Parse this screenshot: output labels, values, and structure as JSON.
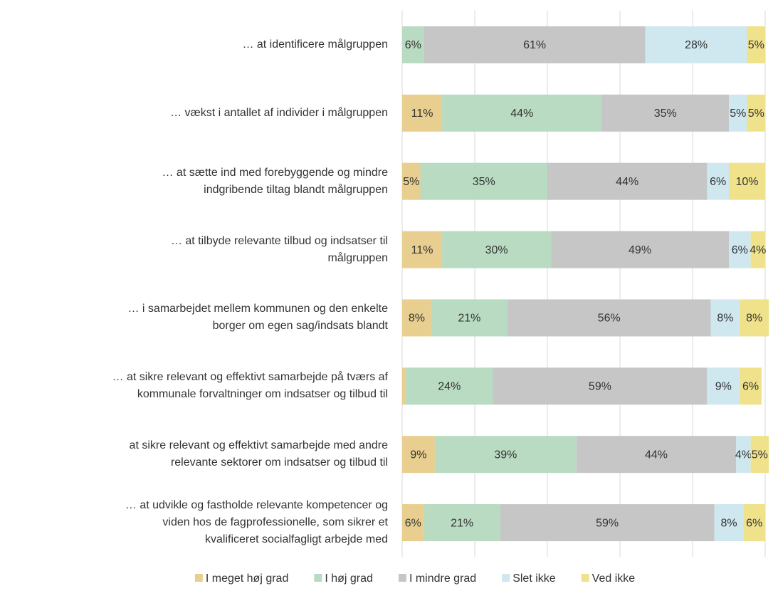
{
  "chart_data": {
    "type": "stacked_bar_horizontal",
    "categories": [
      "… at identificere målgruppen",
      "… vækst i antallet af individer i målgruppen",
      "… at sætte ind med forebyggende og mindre\nindgribende tiltag blandt målgruppen",
      "… at tilbyde relevante tilbud og indsatser til\nmålgruppen",
      "… i samarbejdet mellem kommunen og den enkelte\nborger om egen sag/indsats blandt",
      "… at sikre relevant og effektivt samarbejde på tværs af\nkommunale forvaltninger om indsatser og tilbud til",
      "at sikre relevant og effektivt samarbejde med andre\nrelevante sektorer om indsatser og tilbud til",
      "… at udvikle og fastholde relevante kompetencer og\nviden hos de fagprofessionelle, som sikrer et\nkvalificeret socialfagligt arbejde med"
    ],
    "series": [
      {
        "name": "I meget høj grad",
        "color": "#e8cf8f",
        "values": [
          0,
          11,
          5,
          11,
          8,
          1,
          9,
          6
        ],
        "value_labels": [
          null,
          "11%",
          "5%",
          "11%",
          "8%",
          null,
          "9%",
          "6%"
        ]
      },
      {
        "name": "I høj grad",
        "color": "#b8dbc1",
        "values": [
          6,
          44,
          35,
          30,
          21,
          24,
          39,
          21
        ],
        "value_labels": [
          "6%",
          "44%",
          "35%",
          "30%",
          "21%",
          "24%",
          "39%",
          "21%"
        ]
      },
      {
        "name": "I mindre grad",
        "color": "#c6c6c6",
        "values": [
          61,
          35,
          44,
          49,
          56,
          59,
          44,
          59
        ],
        "value_labels": [
          "61%",
          "35%",
          "44%",
          "49%",
          "56%",
          "59%",
          "44%",
          "59%"
        ]
      },
      {
        "name": "Slet ikke",
        "color": "#cfe8ef",
        "values": [
          28,
          5,
          6,
          6,
          8,
          9,
          4,
          8
        ],
        "value_labels": [
          "28%",
          "5%",
          "6%",
          "6%",
          "8%",
          "9%",
          "4%",
          "8%"
        ]
      },
      {
        "name": "Ved ikke",
        "color": "#f0e28b",
        "values": [
          5,
          5,
          10,
          4,
          8,
          6,
          5,
          6
        ],
        "value_labels": [
          "5%",
          "5%",
          "10%",
          "4%",
          "8%",
          "6%",
          "5%",
          "6%"
        ]
      }
    ],
    "xlim": [
      0,
      100
    ],
    "xticks": [
      0,
      20,
      40,
      60,
      80,
      100
    ],
    "grid": true,
    "legend": "bottom"
  }
}
